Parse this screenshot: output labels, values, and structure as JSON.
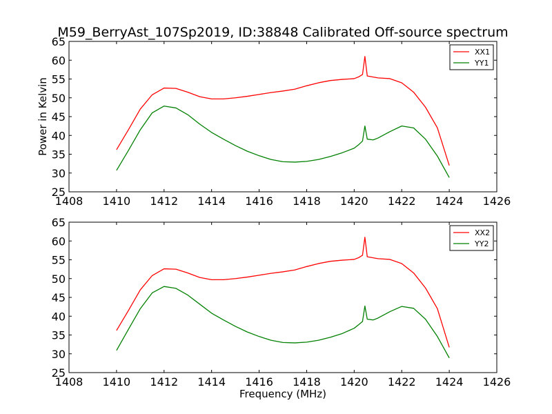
{
  "figure": {
    "title": "M59_BerryAst_107Sp2019, ID:38848 Calibrated Off-source spectrum",
    "ylabel": "Power in Kelvin",
    "xlabel": "Frequency (MHz)"
  },
  "chart_data": [
    {
      "type": "line",
      "xlim": [
        1408,
        1426
      ],
      "ylim": [
        25,
        65
      ],
      "xticks": [
        "1408",
        "1410",
        "1412",
        "1414",
        "1416",
        "1418",
        "1420",
        "1422",
        "1424",
        "1426"
      ],
      "yticks": [
        "25",
        "30",
        "35",
        "40",
        "45",
        "50",
        "55",
        "60",
        "65"
      ],
      "grid": false,
      "legend": "top-right",
      "series": [
        {
          "name": "XX1",
          "color": "#ff0000",
          "points": [
            [
              1410.0,
              36.2
            ],
            [
              1410.5,
              41.5
            ],
            [
              1411.0,
              47.0
            ],
            [
              1411.5,
              50.8
            ],
            [
              1412.0,
              52.6
            ],
            [
              1412.5,
              52.5
            ],
            [
              1413.0,
              51.5
            ],
            [
              1413.5,
              50.3
            ],
            [
              1414.0,
              49.7
            ],
            [
              1414.5,
              49.7
            ],
            [
              1415.0,
              50.0
            ],
            [
              1415.5,
              50.4
            ],
            [
              1416.0,
              50.9
            ],
            [
              1416.5,
              51.4
            ],
            [
              1417.0,
              51.8
            ],
            [
              1417.5,
              52.3
            ],
            [
              1418.0,
              53.2
            ],
            [
              1418.5,
              54.0
            ],
            [
              1419.0,
              54.6
            ],
            [
              1419.5,
              54.9
            ],
            [
              1420.0,
              55.1
            ],
            [
              1420.2,
              55.6
            ],
            [
              1420.35,
              56.2
            ],
            [
              1420.45,
              61.0
            ],
            [
              1420.55,
              55.8
            ],
            [
              1421.0,
              55.3
            ],
            [
              1421.5,
              55.1
            ],
            [
              1422.0,
              54.0
            ],
            [
              1422.5,
              51.5
            ],
            [
              1423.0,
              47.5
            ],
            [
              1423.5,
              42.0
            ],
            [
              1424.0,
              32.0
            ]
          ]
        },
        {
          "name": "YY1",
          "color": "#008000",
          "points": [
            [
              1410.0,
              30.7
            ],
            [
              1410.5,
              36.0
            ],
            [
              1411.0,
              41.5
            ],
            [
              1411.5,
              46.0
            ],
            [
              1412.0,
              47.8
            ],
            [
              1412.5,
              47.3
            ],
            [
              1413.0,
              45.5
            ],
            [
              1413.5,
              43.0
            ],
            [
              1414.0,
              40.8
            ],
            [
              1414.5,
              39.0
            ],
            [
              1415.0,
              37.3
            ],
            [
              1415.5,
              35.8
            ],
            [
              1416.0,
              34.6
            ],
            [
              1416.5,
              33.6
            ],
            [
              1417.0,
              33.0
            ],
            [
              1417.5,
              32.9
            ],
            [
              1418.0,
              33.1
            ],
            [
              1418.5,
              33.6
            ],
            [
              1419.0,
              34.4
            ],
            [
              1419.5,
              35.4
            ],
            [
              1420.0,
              36.6
            ],
            [
              1420.2,
              37.6
            ],
            [
              1420.35,
              38.5
            ],
            [
              1420.45,
              42.5
            ],
            [
              1420.55,
              39.0
            ],
            [
              1420.8,
              38.8
            ],
            [
              1421.0,
              39.3
            ],
            [
              1421.5,
              41.0
            ],
            [
              1422.0,
              42.5
            ],
            [
              1422.5,
              42.0
            ],
            [
              1423.0,
              39.0
            ],
            [
              1423.5,
              34.5
            ],
            [
              1424.0,
              28.8
            ]
          ]
        }
      ]
    },
    {
      "type": "line",
      "xlim": [
        1408,
        1426
      ],
      "ylim": [
        25,
        65
      ],
      "xticks": [
        "1408",
        "1410",
        "1412",
        "1414",
        "1416",
        "1418",
        "1420",
        "1422",
        "1424",
        "1426"
      ],
      "yticks": [
        "25",
        "30",
        "35",
        "40",
        "45",
        "50",
        "55",
        "60",
        "65"
      ],
      "grid": false,
      "legend": "top-right",
      "series": [
        {
          "name": "XX2",
          "color": "#ff0000",
          "points": [
            [
              1410.0,
              36.2
            ],
            [
              1410.5,
              41.5
            ],
            [
              1411.0,
              47.0
            ],
            [
              1411.5,
              50.8
            ],
            [
              1412.0,
              52.6
            ],
            [
              1412.5,
              52.5
            ],
            [
              1413.0,
              51.5
            ],
            [
              1413.5,
              50.3
            ],
            [
              1414.0,
              49.7
            ],
            [
              1414.5,
              49.7
            ],
            [
              1415.0,
              50.0
            ],
            [
              1415.5,
              50.4
            ],
            [
              1416.0,
              50.9
            ],
            [
              1416.5,
              51.4
            ],
            [
              1417.0,
              51.8
            ],
            [
              1417.5,
              52.3
            ],
            [
              1418.0,
              53.2
            ],
            [
              1418.5,
              54.0
            ],
            [
              1419.0,
              54.6
            ],
            [
              1419.5,
              54.9
            ],
            [
              1420.0,
              55.1
            ],
            [
              1420.2,
              55.6
            ],
            [
              1420.35,
              56.2
            ],
            [
              1420.45,
              61.0
            ],
            [
              1420.55,
              55.8
            ],
            [
              1421.0,
              55.3
            ],
            [
              1421.5,
              55.1
            ],
            [
              1422.0,
              54.0
            ],
            [
              1422.5,
              51.5
            ],
            [
              1423.0,
              47.5
            ],
            [
              1423.5,
              42.0
            ],
            [
              1424.0,
              31.7
            ]
          ]
        },
        {
          "name": "YY2",
          "color": "#008000",
          "points": [
            [
              1410.0,
              30.9
            ],
            [
              1410.5,
              36.5
            ],
            [
              1411.0,
              42.0
            ],
            [
              1411.5,
              46.2
            ],
            [
              1412.0,
              47.9
            ],
            [
              1412.5,
              47.4
            ],
            [
              1413.0,
              45.6
            ],
            [
              1413.5,
              43.2
            ],
            [
              1414.0,
              40.8
            ],
            [
              1414.5,
              39.0
            ],
            [
              1415.0,
              37.3
            ],
            [
              1415.5,
              35.8
            ],
            [
              1416.0,
              34.6
            ],
            [
              1416.5,
              33.6
            ],
            [
              1417.0,
              33.0
            ],
            [
              1417.5,
              32.9
            ],
            [
              1418.0,
              33.1
            ],
            [
              1418.5,
              33.6
            ],
            [
              1419.0,
              34.4
            ],
            [
              1419.5,
              35.4
            ],
            [
              1420.0,
              36.8
            ],
            [
              1420.2,
              37.8
            ],
            [
              1420.35,
              38.6
            ],
            [
              1420.45,
              42.7
            ],
            [
              1420.55,
              39.2
            ],
            [
              1420.8,
              39.0
            ],
            [
              1421.0,
              39.5
            ],
            [
              1421.5,
              41.2
            ],
            [
              1422.0,
              42.6
            ],
            [
              1422.5,
              42.1
            ],
            [
              1423.0,
              39.2
            ],
            [
              1423.5,
              34.6
            ],
            [
              1424.0,
              28.9
            ]
          ]
        }
      ]
    }
  ]
}
